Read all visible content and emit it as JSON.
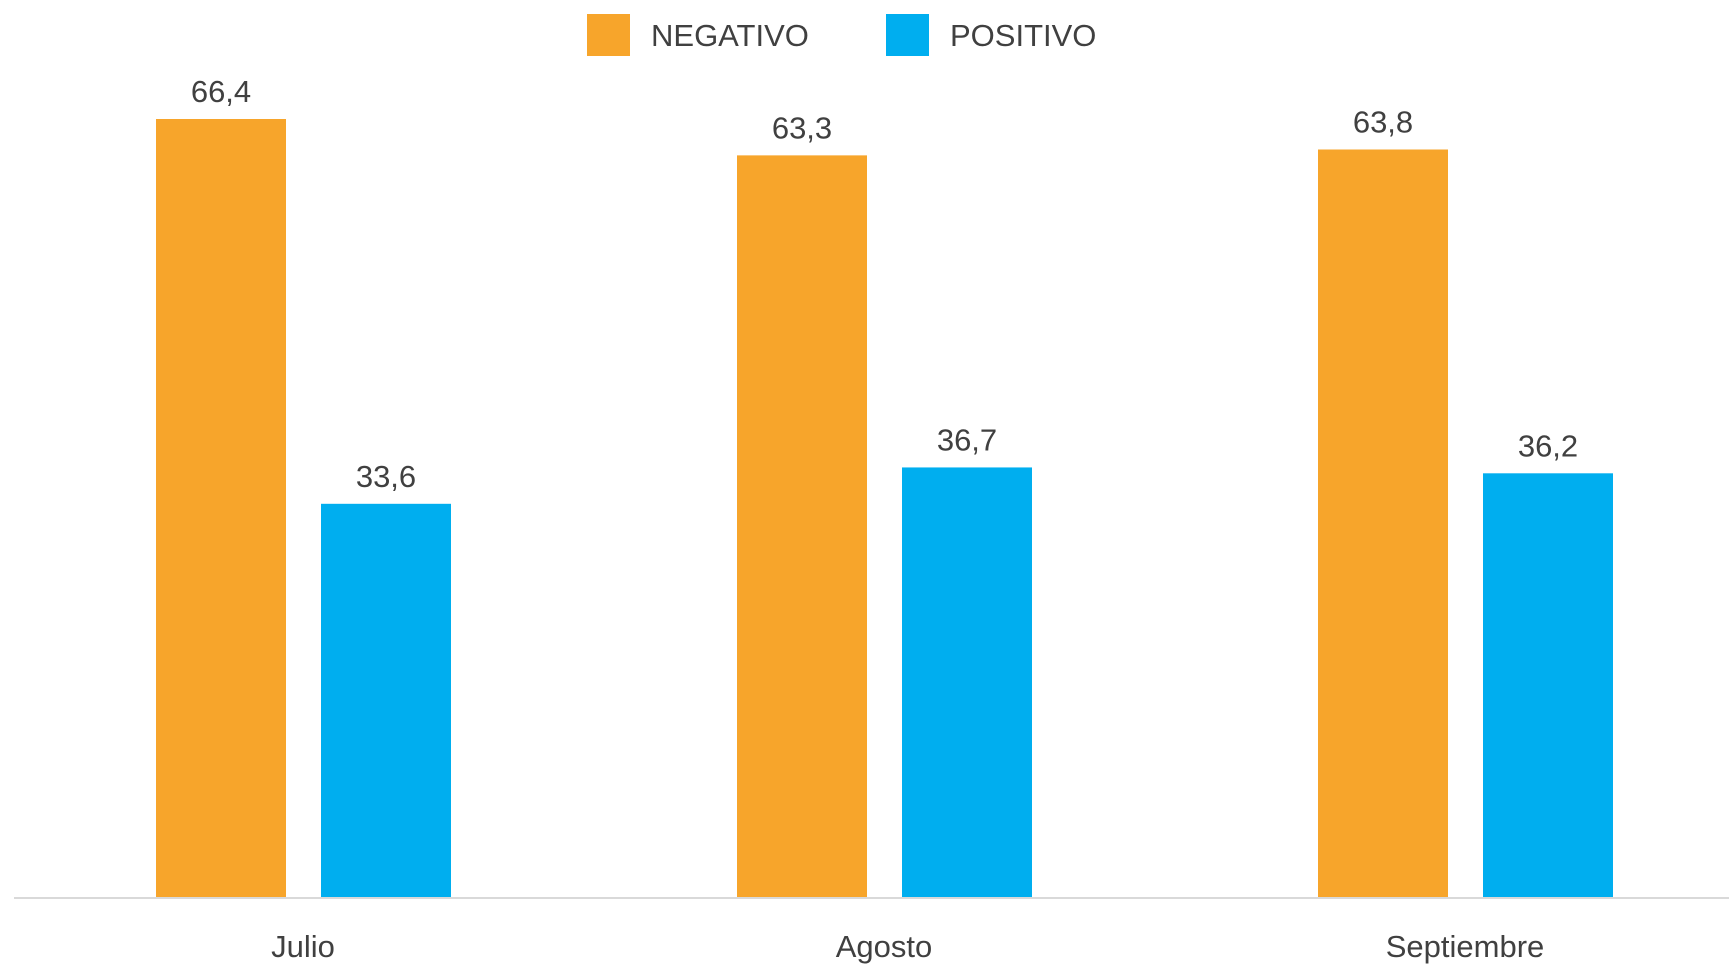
{
  "chart_data": {
    "type": "bar",
    "title": "",
    "xlabel": "",
    "ylabel": "",
    "categories": [
      "Julio",
      "Agosto",
      "Septiembre"
    ],
    "series": [
      {
        "name": "NEGATIVO",
        "color": "#F7A52B",
        "values": [
          66.4,
          63.3,
          63.8
        ],
        "labels": [
          "66,4",
          "63,3",
          "63,8"
        ]
      },
      {
        "name": "POSITIVO",
        "color": "#00AEEF",
        "values": [
          33.6,
          36.7,
          36.2
        ],
        "labels": [
          "33,6",
          "36,7",
          "36,2"
        ]
      }
    ],
    "ylim": [
      0,
      66.4
    ],
    "grid": false,
    "legend": "top-center",
    "axis_color": "#D9D9D9",
    "text_color": "#404040"
  }
}
